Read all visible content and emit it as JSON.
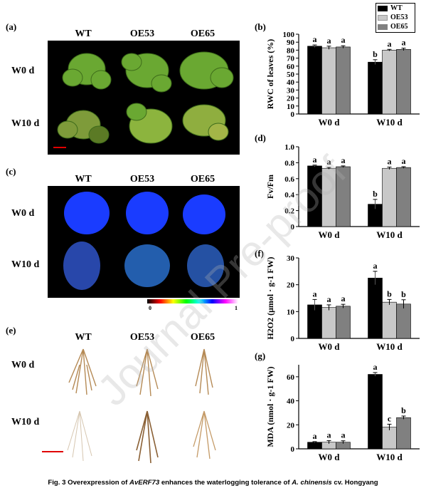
{
  "panels": {
    "a": {
      "label": "(a)",
      "cols": [
        "WT",
        "OE53",
        "OE65"
      ],
      "rows": [
        "W0 d",
        "W10 d"
      ]
    },
    "c": {
      "label": "(c)",
      "cols": [
        "WT",
        "OE53",
        "OE65"
      ],
      "rows": [
        "W0 d",
        "W10 d"
      ],
      "colorbar_min": "0",
      "colorbar_max": "1"
    },
    "e": {
      "label": "(e)",
      "cols": [
        "WT",
        "OE53",
        "OE65"
      ],
      "rows": [
        "W0 d",
        "W10 d"
      ]
    }
  },
  "legend": [
    "WT",
    "OE53",
    "OE65"
  ],
  "colors": {
    "WT": "#000000",
    "OE53": "#c8c8c8",
    "OE65": "#808080",
    "leaf": "#6aa832",
    "fluor_blue": "#1a3cff",
    "root": "#b58a55"
  },
  "chart_data": [
    {
      "panel": "(b)",
      "type": "bar",
      "categories": [
        "W0 d",
        "W10 d"
      ],
      "series": [
        {
          "name": "WT",
          "values": [
            85,
            65
          ],
          "err": [
            1.5,
            3
          ]
        },
        {
          "name": "OE53",
          "values": [
            83,
            80
          ],
          "err": [
            2,
            1
          ]
        },
        {
          "name": "OE65",
          "values": [
            84,
            81
          ],
          "err": [
            1.5,
            1.5
          ]
        }
      ],
      "letters": [
        [
          "a",
          "a",
          "a"
        ],
        [
          "b",
          "a",
          "a"
        ]
      ],
      "ylabel": "RWC of leaves (%)",
      "ylim": [
        0,
        100
      ],
      "yticks": [
        "0",
        "10",
        "20",
        "30",
        "40",
        "50",
        "60",
        "70",
        "80",
        "90",
        "100"
      ]
    },
    {
      "panel": "(d)",
      "type": "bar",
      "categories": [
        "W0 d",
        "W10 d"
      ],
      "series": [
        {
          "name": "WT",
          "values": [
            0.76,
            0.28
          ],
          "err": [
            0.01,
            0.06
          ]
        },
        {
          "name": "OE53",
          "values": [
            0.73,
            0.73
          ],
          "err": [
            0.01,
            0.015
          ]
        },
        {
          "name": "OE65",
          "values": [
            0.75,
            0.74
          ],
          "err": [
            0.01,
            0.01
          ]
        }
      ],
      "letters": [
        [
          "a",
          "a",
          "a"
        ],
        [
          "b",
          "a",
          "a"
        ]
      ],
      "ylabel": "Fv/Fm",
      "ylim": [
        0,
        1.0
      ],
      "yticks": [
        "0",
        "0.2",
        "0.4",
        "0.6",
        "0.8",
        "1.0"
      ]
    },
    {
      "panel": "(f)",
      "type": "bar",
      "categories": [
        "W0 d",
        "W10 d"
      ],
      "series": [
        {
          "name": "WT",
          "values": [
            12.5,
            22.5
          ],
          "err": [
            2,
            2.5
          ]
        },
        {
          "name": "OE53",
          "values": [
            11.5,
            13.5
          ],
          "err": [
            1,
            1
          ]
        },
        {
          "name": "OE65",
          "values": [
            12,
            12.8
          ],
          "err": [
            0.7,
            1.6
          ]
        }
      ],
      "letters": [
        [
          "a",
          "a",
          "a"
        ],
        [
          "a",
          "b",
          "b"
        ]
      ],
      "ylabel": "H2O2 (μmol · g-1 FW)",
      "ylim": [
        0,
        30
      ],
      "yticks": [
        "0",
        "10",
        "20",
        "30"
      ]
    },
    {
      "panel": "(g)",
      "type": "bar",
      "categories": [
        "W0 d",
        "W10 d"
      ],
      "series": [
        {
          "name": "WT",
          "values": [
            5.5,
            62
          ],
          "err": [
            0.5,
            1.5
          ]
        },
        {
          "name": "OE53",
          "values": [
            5.5,
            18
          ],
          "err": [
            1.3,
            2.5
          ]
        },
        {
          "name": "OE65",
          "values": [
            5.5,
            26
          ],
          "err": [
            1.2,
            1.3
          ]
        }
      ],
      "letters": [
        [
          "a",
          "a",
          "a"
        ],
        [
          "a",
          "c",
          "b"
        ]
      ],
      "ylabel": "MDA (nmol · g-1 FW)",
      "ylim": [
        0,
        70
      ],
      "yticks": [
        "0",
        "20",
        "40",
        "60"
      ]
    }
  ],
  "watermark": "Journal Pre-proof",
  "caption": "Fig. 3    Overexpression of AvERF73 enhances the waterlogging tolerance of A. chinensis cv. Hongyang",
  "caption_parts": {
    "pre": "Fig. 3    Overexpression of ",
    "gene": "AvERF73",
    "mid": " enhances the waterlogging tolerance of ",
    "species": "A. chinensis",
    "post": " cv. Hongyang"
  }
}
